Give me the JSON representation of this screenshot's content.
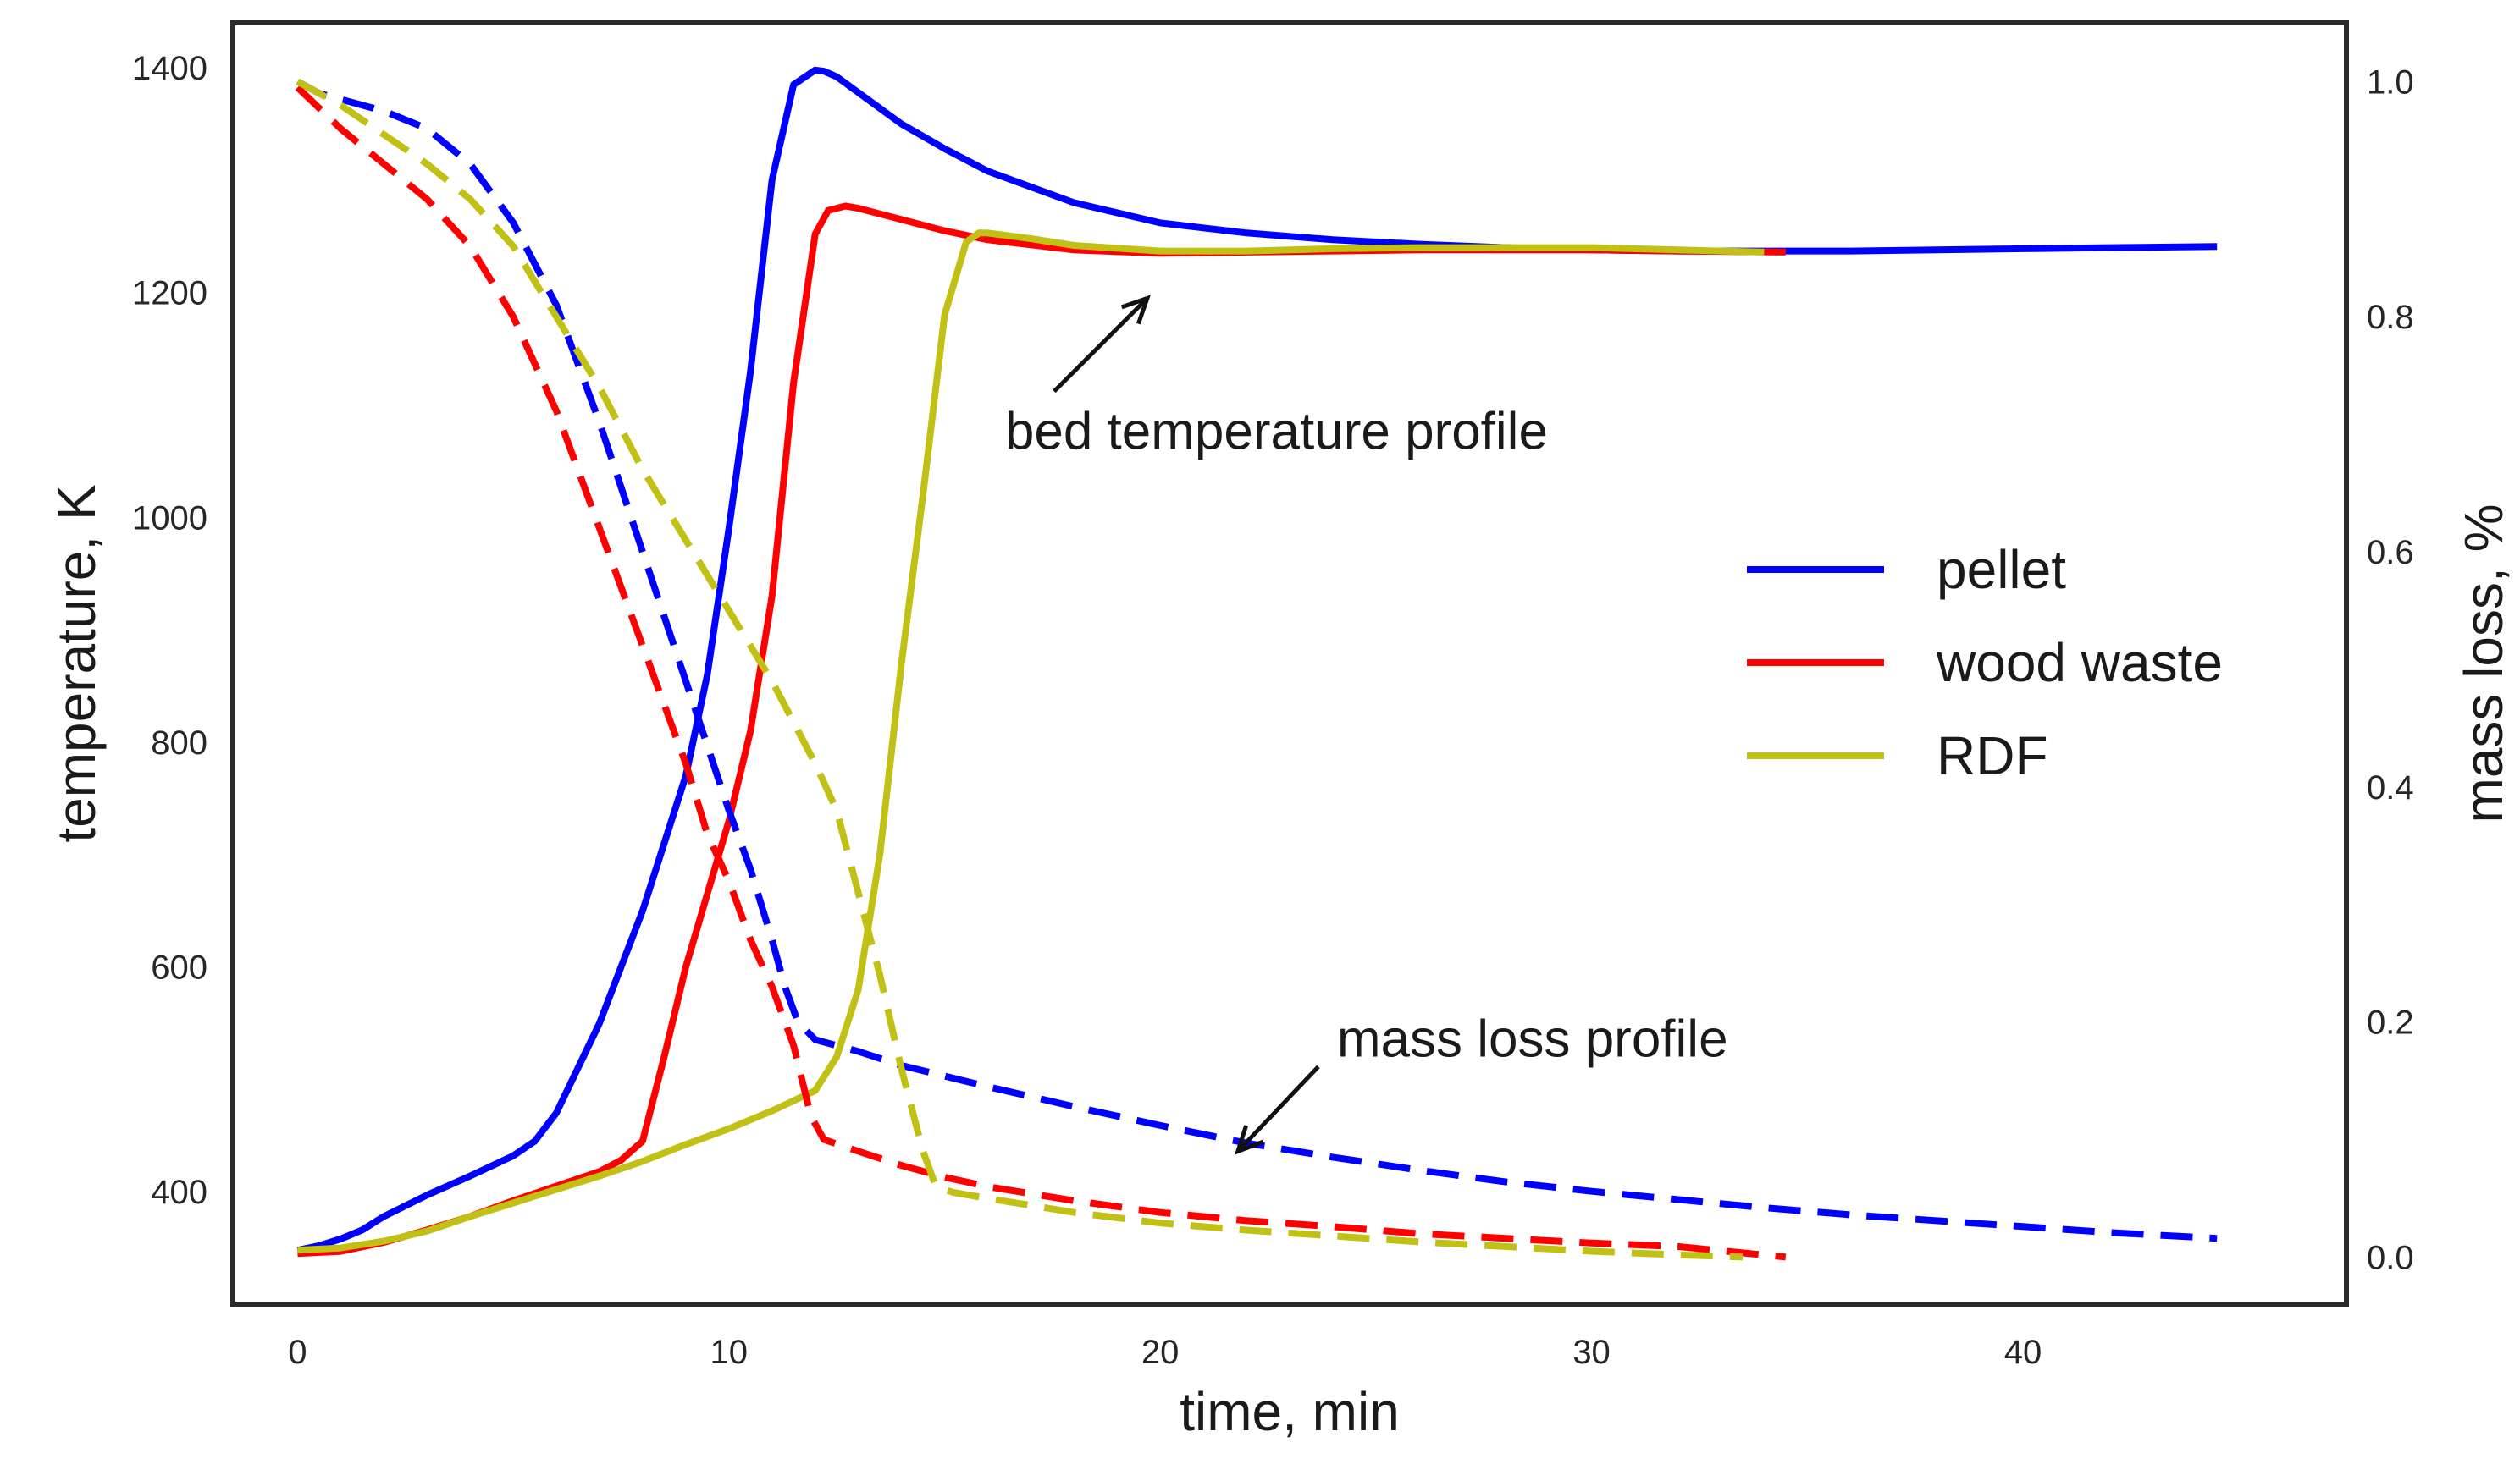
{
  "chart_data": {
    "type": "line",
    "title": "",
    "xlabel": "time, min",
    "ylabel": "temperature, K",
    "y2label": "mass loss, %",
    "xlim": [
      -1.5,
      47.5
    ],
    "ylim": [
      300,
      1440
    ],
    "y2lim": [
      -0.04,
      1.05
    ],
    "x_ticks": [
      0,
      10,
      20,
      30,
      40
    ],
    "x_tick_labels": [
      "0",
      "10",
      "20",
      "30",
      "40"
    ],
    "y_ticks": [
      400,
      600,
      800,
      1000,
      1200,
      1400
    ],
    "y_tick_labels": [
      "400",
      "600",
      "800",
      "1000",
      "1200",
      "1400"
    ],
    "y2_ticks": [
      0.0,
      0.2,
      0.4,
      0.6,
      0.8,
      1.0
    ],
    "y2_tick_labels": [
      "0.0",
      "0.2",
      "0.4",
      "0.6",
      "0.8",
      "1.0"
    ],
    "grid": false,
    "legend_position": "right",
    "series": [
      {
        "name": "pellet",
        "metric": "bed temperature",
        "axis": "left",
        "style": "solid",
        "color": "#0000ff",
        "x": [
          0,
          0.5,
          1,
          1.5,
          2,
          3,
          4,
          5,
          5.5,
          6,
          7,
          8,
          9,
          9.5,
          10,
          10.5,
          11,
          11.5,
          12,
          12.2,
          12.5,
          13,
          14,
          15,
          16,
          18,
          20,
          22,
          24,
          26,
          28,
          30,
          32,
          34,
          36,
          38,
          40,
          42,
          44.5
        ],
        "y": [
          348,
          352,
          358,
          366,
          378,
          397,
          414,
          432,
          445,
          470,
          550,
          650,
          770,
          860,
          990,
          1130,
          1300,
          1385,
          1398,
          1397,
          1392,
          1378,
          1350,
          1328,
          1308,
          1280,
          1262,
          1253,
          1247,
          1243,
          1240,
          1238,
          1237,
          1237,
          1237,
          1238,
          1239,
          1240,
          1241
        ]
      },
      {
        "name": "wood waste",
        "metric": "bed temperature",
        "axis": "left",
        "style": "solid",
        "color": "#ff0000",
        "x": [
          0,
          1,
          2,
          3,
          4,
          5,
          6,
          7,
          7.5,
          8,
          8.5,
          9,
          9.5,
          10,
          10.5,
          11,
          11.5,
          12,
          12.3,
          12.7,
          13,
          14,
          15,
          16,
          18,
          20,
          22,
          24,
          26,
          28,
          30,
          32,
          34.5
        ],
        "y": [
          345,
          347,
          355,
          366,
          378,
          392,
          405,
          418,
          428,
          445,
          520,
          600,
          665,
          730,
          810,
          930,
          1120,
          1252,
          1273,
          1277,
          1275,
          1265,
          1255,
          1247,
          1238,
          1235,
          1236,
          1237,
          1238,
          1238,
          1238,
          1237,
          1236
        ]
      },
      {
        "name": "RDF",
        "metric": "bed temperature",
        "axis": "left",
        "style": "solid",
        "color": "#c0c015",
        "x": [
          0,
          1,
          2,
          3,
          4,
          5,
          6,
          7,
          8,
          9,
          10,
          11,
          12,
          12.5,
          13,
          13.5,
          14,
          14.5,
          15,
          15.5,
          15.8,
          16,
          17,
          18,
          20,
          22,
          24,
          26,
          28,
          30,
          32,
          34
        ],
        "y": [
          348,
          350,
          356,
          365,
          378,
          390,
          402,
          414,
          427,
          442,
          456,
          472,
          490,
          520,
          580,
          700,
          870,
          1020,
          1180,
          1245,
          1253,
          1253,
          1248,
          1242,
          1237,
          1237,
          1239,
          1240,
          1240,
          1240,
          1238,
          1236
        ]
      },
      {
        "name": "pellet",
        "metric": "mass loss",
        "axis": "right",
        "style": "dashed",
        "color": "#0000ff",
        "x": [
          0,
          0.5,
          1,
          2,
          3,
          4,
          5,
          6,
          7,
          8,
          9,
          10,
          10.5,
          11,
          11.3,
          11.6,
          12,
          13,
          14,
          16,
          18,
          20,
          22,
          24,
          26,
          28,
          30,
          32,
          34,
          36,
          38,
          40,
          42,
          44.5
        ],
        "y": [
          1.0,
          0.99,
          0.985,
          0.975,
          0.96,
          0.93,
          0.88,
          0.81,
          0.71,
          0.6,
          0.49,
          0.38,
          0.33,
          0.27,
          0.23,
          0.2,
          0.185,
          0.175,
          0.163,
          0.145,
          0.128,
          0.112,
          0.097,
          0.085,
          0.074,
          0.064,
          0.056,
          0.049,
          0.042,
          0.036,
          0.031,
          0.026,
          0.021,
          0.016
        ]
      },
      {
        "name": "wood waste",
        "metric": "mass loss",
        "axis": "right",
        "style": "dashed",
        "color": "#ff0000",
        "x": [
          0,
          1,
          2,
          3,
          4,
          5,
          6,
          7,
          8,
          9,
          9.5,
          10,
          10.5,
          11,
          11.5,
          11.9,
          12.2,
          13,
          14,
          15,
          16,
          18,
          20,
          22,
          24,
          26,
          28,
          30,
          32,
          34.5
        ],
        "y": [
          0.995,
          0.96,
          0.93,
          0.9,
          0.86,
          0.8,
          0.72,
          0.62,
          0.52,
          0.42,
          0.36,
          0.32,
          0.27,
          0.23,
          0.18,
          0.12,
          0.1,
          0.09,
          0.078,
          0.068,
          0.06,
          0.048,
          0.038,
          0.031,
          0.026,
          0.02,
          0.016,
          0.012,
          0.009,
          0.0
        ]
      },
      {
        "name": "RDF",
        "metric": "mass loss",
        "axis": "right",
        "style": "dashed",
        "color": "#c0c015",
        "x": [
          0,
          1,
          2,
          3,
          4,
          5,
          6,
          7,
          8,
          9,
          10,
          11,
          12,
          12.5,
          13,
          13.5,
          14,
          14.5,
          14.8,
          15.2,
          16,
          18,
          20,
          22,
          24,
          26,
          28,
          30,
          32,
          33.5
        ],
        "y": [
          1.0,
          0.98,
          0.955,
          0.93,
          0.9,
          0.86,
          0.8,
          0.74,
          0.67,
          0.61,
          0.55,
          0.49,
          0.42,
          0.38,
          0.31,
          0.24,
          0.16,
          0.09,
          0.06,
          0.055,
          0.05,
          0.038,
          0.029,
          0.023,
          0.018,
          0.013,
          0.009,
          0.005,
          0.002,
          0.0
        ]
      }
    ],
    "legend": [
      {
        "label": "pellet",
        "color": "#0000ff"
      },
      {
        "label": "wood waste",
        "color": "#ff0000"
      },
      {
        "label": "RDF",
        "color": "#c0c015"
      }
    ],
    "annotations": [
      {
        "text": "bed temperature profile",
        "arrow_to_x": 19.7,
        "arrow_to_y": 1195,
        "axis": "left"
      },
      {
        "text": "mass loss profile",
        "arrow_to_x": 21.8,
        "arrow_to_y": 0.09,
        "axis": "right"
      }
    ]
  }
}
